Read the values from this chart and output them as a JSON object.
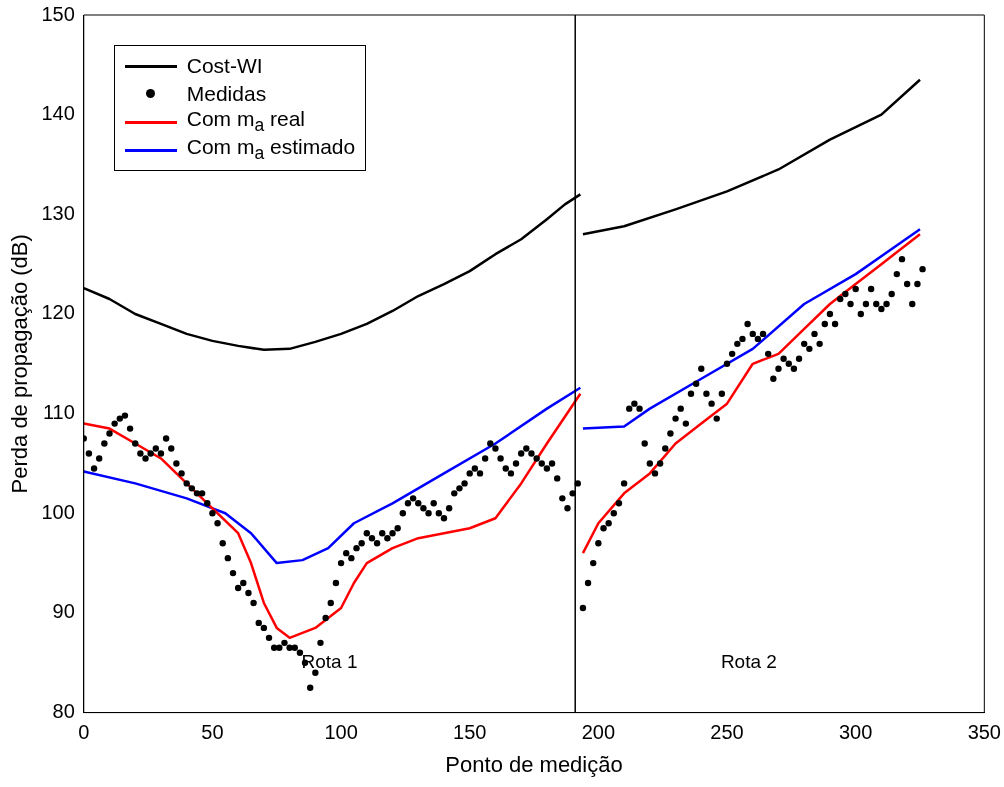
{
  "chart_data": {
    "type": "line",
    "xlabel": "Ponto de medição",
    "ylabel": "Perda de propagação (dB)",
    "xlim": [
      0,
      350
    ],
    "xticks": [
      0,
      50,
      100,
      150,
      200,
      250,
      300,
      350
    ],
    "ylim": [
      80,
      150
    ],
    "yticks": [
      80,
      90,
      100,
      110,
      120,
      130,
      140,
      150
    ],
    "grid": false,
    "legend": "top left",
    "marker": "none",
    "line_style": "solid",
    "series": [
      {
        "name": "Cost-WI",
        "color": "#000000",
        "type": "line",
        "x": [
          0,
          10,
          20,
          30,
          40,
          50,
          60,
          70,
          80,
          90,
          100,
          110,
          120,
          130,
          140,
          150,
          160,
          170,
          180,
          187,
          193,
          193.5,
          194,
          210,
          230,
          250,
          270,
          290,
          310,
          325
        ],
        "values": [
          122.6,
          121.5,
          120,
          119,
          118,
          117.3,
          116.8,
          116.4,
          116.5,
          117.2,
          118,
          119,
          120.3,
          121.8,
          123,
          124.3,
          126,
          127.5,
          129.5,
          131,
          132,
          null,
          128,
          128.8,
          130.5,
          132.3,
          134.5,
          137.5,
          140,
          143.5
        ]
      },
      {
        "name": "Medidas",
        "color": "#000000",
        "type": "scatter",
        "marker": "circle",
        "x": [
          0,
          2,
          4,
          6,
          8,
          10,
          12,
          14,
          16,
          18,
          20,
          22,
          24,
          26,
          28,
          30,
          32,
          34,
          36,
          38,
          40,
          42,
          44,
          46,
          48,
          50,
          52,
          54,
          56,
          58,
          60,
          62,
          64,
          66,
          68,
          70,
          72,
          74,
          76,
          78,
          80,
          82,
          84,
          86,
          88,
          90,
          92,
          94,
          96,
          98,
          100,
          102,
          104,
          106,
          108,
          110,
          112,
          114,
          116,
          118,
          120,
          122,
          124,
          126,
          128,
          130,
          132,
          134,
          136,
          138,
          140,
          142,
          144,
          146,
          148,
          150,
          152,
          154,
          156,
          158,
          160,
          162,
          164,
          166,
          168,
          170,
          172,
          174,
          176,
          178,
          180,
          182,
          184,
          186,
          188,
          190,
          192,
          194,
          196,
          198,
          200,
          202,
          204,
          206,
          208,
          210,
          212,
          214,
          216,
          218,
          220,
          222,
          224,
          226,
          228,
          230,
          232,
          234,
          236,
          238,
          240,
          242,
          244,
          246,
          248,
          250,
          252,
          254,
          256,
          258,
          260,
          262,
          264,
          266,
          268,
          270,
          272,
          274,
          276,
          278,
          280,
          282,
          284,
          286,
          288,
          290,
          292,
          294,
          296,
          298,
          300,
          302,
          304,
          306,
          308,
          310,
          312,
          314,
          316,
          318,
          320,
          322,
          324,
          326
        ],
        "values": [
          107.5,
          106,
          104.5,
          105.5,
          107,
          108,
          109,
          109.5,
          109.8,
          108.5,
          107,
          106,
          105.5,
          106,
          106.5,
          106,
          107.5,
          106.5,
          105,
          104,
          103,
          102.5,
          102,
          102,
          101,
          100,
          99,
          97,
          95.5,
          94,
          92.5,
          93,
          92,
          91,
          89,
          88.5,
          87.5,
          86.5,
          86.5,
          87,
          86.5,
          86.5,
          86,
          85,
          82.5,
          84,
          87,
          89.5,
          91,
          93,
          95,
          96,
          95.5,
          96.5,
          97,
          98,
          97.5,
          97,
          98,
          97.5,
          98,
          98.5,
          100,
          101,
          101.5,
          101,
          100.5,
          100,
          101,
          100,
          99.5,
          100.5,
          102,
          102.5,
          103,
          104,
          104.5,
          104,
          105.5,
          107,
          106.5,
          105.5,
          104.5,
          104,
          105,
          106,
          106.5,
          106,
          105.5,
          105,
          104.5,
          105,
          103.5,
          101.5,
          100.5,
          102,
          103,
          90.5,
          93,
          95,
          97,
          98.5,
          99,
          100,
          101,
          103,
          110.5,
          111,
          110.5,
          107,
          105,
          104,
          105,
          106.5,
          108,
          109.5,
          110.5,
          109,
          112,
          113,
          114.5,
          112,
          111,
          109.5,
          112,
          115,
          116,
          117,
          117.5,
          119,
          118,
          117.5,
          118,
          116,
          113.5,
          114.5,
          115.5,
          115,
          114.5,
          115.5,
          117,
          116.5,
          118,
          117,
          119,
          120,
          119,
          121.5,
          122,
          121,
          122.5,
          120,
          121,
          122.5,
          121,
          120.5,
          121,
          122,
          124,
          125.5,
          123,
          121,
          123,
          124.5
        ]
      },
      {
        "name": "Com m$_{a}$ real",
        "color": "#ff0000",
        "type": "line",
        "x": [
          0,
          10,
          20,
          30,
          40,
          50,
          60,
          65,
          70,
          75,
          80,
          90,
          100,
          105,
          110,
          120,
          130,
          140,
          150,
          160,
          170,
          180,
          193,
          193.5,
          194,
          200,
          210,
          220,
          230,
          240,
          250,
          260,
          270,
          280,
          290,
          300,
          310,
          325
        ],
        "values": [
          109,
          108.5,
          107,
          105.5,
          103,
          100.5,
          98,
          95,
          91,
          88.5,
          87.5,
          88.5,
          90.5,
          93,
          95,
          96.5,
          97.5,
          98,
          98.5,
          99.5,
          103,
          107,
          112,
          null,
          96,
          99,
          102,
          104,
          107,
          109,
          111,
          115,
          116,
          118.5,
          121,
          123,
          125,
          128
        ]
      },
      {
        "name": "Com m$_{a}$ estimado",
        "color": "#0000ff",
        "type": "line",
        "x": [
          0,
          20,
          40,
          55,
          65,
          75,
          85,
          95,
          105,
          120,
          140,
          160,
          180,
          193,
          193.5,
          194,
          210,
          220,
          240,
          260,
          280,
          300,
          325
        ],
        "values": [
          104.2,
          103,
          101.5,
          100,
          98,
          95,
          95.3,
          96.5,
          99,
          101,
          104,
          107,
          110.5,
          112.6,
          null,
          108.5,
          108.7,
          110.5,
          113.5,
          116.5,
          121,
          124,
          128.5
        ]
      }
    ],
    "ref_lines": [
      {
        "axis": "x",
        "value": 191,
        "color": "#000000"
      }
    ],
    "annotations": [
      "Rota 1",
      "Rota 2"
    ]
  }
}
